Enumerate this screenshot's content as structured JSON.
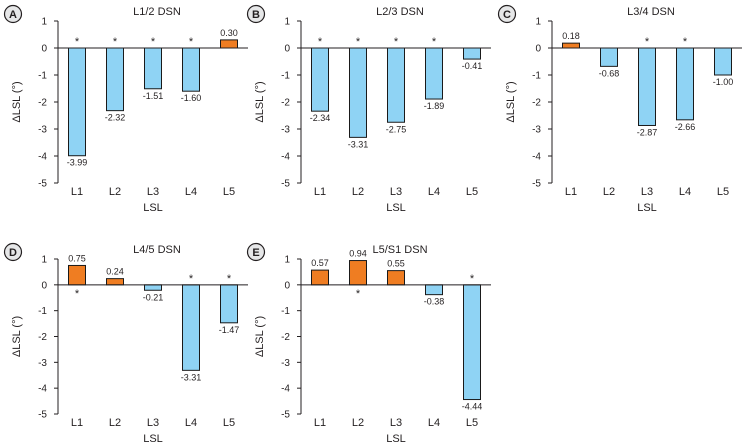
{
  "chart_data": [
    {
      "panel_letter": "A",
      "type": "bar",
      "title": "L1/2 DSN",
      "xlabel": "LSL",
      "ylabel": "ΔLSL (°)",
      "ylim": [
        -5,
        1
      ],
      "yticks": [
        "1",
        "0",
        "-1",
        "-2",
        "-3",
        "-4",
        "-5"
      ],
      "categories": [
        "L1",
        "L2",
        "L3",
        "L4",
        "L5"
      ],
      "values": [
        -3.99,
        -2.32,
        -1.51,
        -1.6,
        0.3
      ],
      "value_labels": [
        "-3.99",
        "-2.32",
        "-1.51",
        "-1.60",
        "0.30"
      ],
      "significant": [
        true,
        true,
        true,
        true,
        false
      ]
    },
    {
      "panel_letter": "B",
      "type": "bar",
      "title": "L2/3 DSN",
      "xlabel": "LSL",
      "ylabel": "ΔLSL (°)",
      "ylim": [
        -5,
        1
      ],
      "yticks": [
        "1",
        "0",
        "-1",
        "-2",
        "-3",
        "-4",
        "-5"
      ],
      "categories": [
        "L1",
        "L2",
        "L3",
        "L4",
        "L5"
      ],
      "values": [
        -2.34,
        -3.31,
        -2.75,
        -1.89,
        -0.41
      ],
      "value_labels": [
        "-2.34",
        "-3.31",
        "-2.75",
        "-1.89",
        "-0.41"
      ],
      "significant": [
        true,
        true,
        true,
        true,
        false
      ]
    },
    {
      "panel_letter": "C",
      "type": "bar",
      "title": "L3/4 DSN",
      "xlabel": "LSL",
      "ylabel": "ΔLSL (°)",
      "ylim": [
        -5,
        1
      ],
      "yticks": [
        "1",
        "0",
        "-1",
        "-2",
        "-3",
        "-4",
        "-5"
      ],
      "categories": [
        "L1",
        "L2",
        "L3",
        "L4",
        "L5"
      ],
      "values": [
        0.18,
        -0.68,
        -2.87,
        -2.66,
        -1.0
      ],
      "value_labels": [
        "0.18",
        "-0.68",
        "-2.87",
        "-2.66",
        "-1.00"
      ],
      "significant": [
        false,
        false,
        true,
        true,
        false
      ]
    },
    {
      "panel_letter": "D",
      "type": "bar",
      "title": "L4/5 DSN",
      "xlabel": "LSL",
      "ylabel": "ΔLSL (°)",
      "ylim": [
        -5,
        1
      ],
      "yticks": [
        "1",
        "0",
        "-1",
        "-2",
        "-3",
        "-4",
        "-5"
      ],
      "categories": [
        "L1",
        "L2",
        "L3",
        "L4",
        "L5"
      ],
      "values": [
        0.75,
        0.24,
        -0.21,
        -3.31,
        -1.47
      ],
      "value_labels": [
        "0.75",
        "0.24",
        "-0.21",
        "-3.31",
        "-1.47"
      ],
      "significant": [
        true,
        false,
        false,
        true,
        true
      ]
    },
    {
      "panel_letter": "E",
      "type": "bar",
      "title": "L5/S1 DSN",
      "xlabel": "LSL",
      "ylabel": "ΔLSL (°)",
      "ylim": [
        -5,
        1
      ],
      "yticks": [
        "1",
        "0",
        "-1",
        "-2",
        "-3",
        "-4",
        "-5"
      ],
      "categories": [
        "L1",
        "L2",
        "L3",
        "L4",
        "L5"
      ],
      "values": [
        0.57,
        0.94,
        0.55,
        -0.38,
        -4.44
      ],
      "value_labels": [
        "0.57",
        "0.94",
        "0.55",
        "-0.38",
        "-4.44"
      ],
      "significant": [
        false,
        true,
        false,
        false,
        true
      ]
    }
  ],
  "marks": {
    "significance_symbol": "*"
  },
  "colors": {
    "negative_fill": "#8fd3f4",
    "positive_fill": "#ef7d22",
    "bar_stroke": "#1a1a1a",
    "axis": "#231f20",
    "text": "#231f20",
    "badge_fill": "#e6e7e8",
    "badge_stroke": "#231f20"
  }
}
